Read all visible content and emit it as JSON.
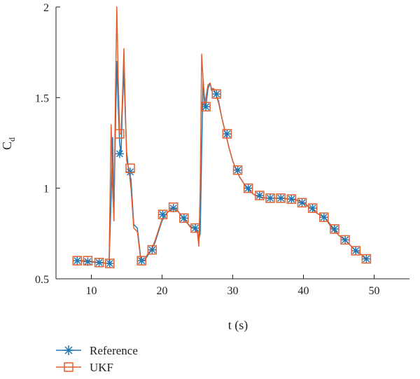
{
  "chart_data": {
    "type": "line",
    "xlabel": "t (s)",
    "ylabel": "C",
    "ylabel_subscript": "d",
    "xlim": [
      5,
      55
    ],
    "ylim": [
      0.5,
      2.0
    ],
    "xticks": [
      10,
      20,
      30,
      40,
      50
    ],
    "yticks": [
      0.5,
      1,
      1.5,
      2
    ],
    "ytick_labels": [
      "0.5",
      "1",
      "1.5",
      "2"
    ],
    "grid": false,
    "legend_placement": "bottom-left",
    "series": [
      {
        "name": "Reference",
        "color": "#1f77b4",
        "marker": "asterisk",
        "x": [
          8.0,
          9.5,
          11.0,
          12.5,
          12.8,
          13.0,
          13.2,
          13.4,
          13.6,
          13.8,
          14.0,
          14.2,
          14.4,
          14.6,
          14.8,
          15.0,
          15.3,
          15.6,
          16.0,
          16.5,
          17.0,
          17.5,
          18.0,
          18.5,
          19.0,
          19.5,
          20.0,
          20.5,
          21.0,
          21.5,
          22.0,
          22.5,
          23.0,
          23.5,
          24.0,
          24.5,
          25.0,
          25.2,
          25.4,
          25.6,
          25.8,
          26.0,
          26.2,
          26.5,
          26.8,
          27.0,
          27.3,
          27.6,
          28.0,
          28.5,
          29.0,
          29.5,
          30.0,
          30.5,
          31.0,
          31.5,
          32.0,
          32.5,
          33.0,
          33.5,
          34.0,
          35.0,
          36.0,
          37.0,
          38.0,
          39.0,
          40.0,
          41.0,
          42.0,
          43.0,
          44.0,
          45.0,
          46.0,
          47.0,
          48.0,
          48.8
        ],
        "y": [
          0.6,
          0.595,
          0.59,
          0.585,
          0.95,
          1.28,
          0.9,
          1.3,
          1.7,
          1.45,
          1.25,
          1.19,
          1.45,
          1.65,
          1.4,
          1.2,
          1.09,
          1.05,
          0.8,
          0.78,
          0.61,
          0.6,
          0.63,
          0.66,
          0.7,
          0.76,
          0.82,
          0.855,
          0.875,
          0.89,
          0.885,
          0.86,
          0.835,
          0.81,
          0.79,
          0.78,
          0.76,
          0.72,
          0.75,
          1.2,
          1.6,
          1.5,
          1.45,
          1.55,
          1.58,
          1.54,
          1.55,
          1.52,
          1.48,
          1.38,
          1.3,
          1.22,
          1.15,
          1.1,
          1.06,
          1.03,
          1.0,
          0.98,
          0.965,
          0.955,
          0.95,
          0.945,
          0.945,
          0.945,
          0.94,
          0.935,
          0.92,
          0.89,
          0.86,
          0.84,
          0.79,
          0.74,
          0.71,
          0.67,
          0.64,
          0.61
        ]
      },
      {
        "name": "UKF",
        "color": "#e0602f",
        "marker": "square",
        "x": [
          8.0,
          9.5,
          11.0,
          12.5,
          12.8,
          13.0,
          13.2,
          13.4,
          13.6,
          13.8,
          14.0,
          14.2,
          14.4,
          14.6,
          14.8,
          15.0,
          15.3,
          15.6,
          16.0,
          16.5,
          17.0,
          17.5,
          18.0,
          18.5,
          19.0,
          19.5,
          20.0,
          20.5,
          21.0,
          21.5,
          22.0,
          22.5,
          23.0,
          23.5,
          24.0,
          24.5,
          25.0,
          25.2,
          25.4,
          25.6,
          25.8,
          26.0,
          26.2,
          26.5,
          26.8,
          27.0,
          27.3,
          27.6,
          28.0,
          28.5,
          29.0,
          29.5,
          30.0,
          30.5,
          31.0,
          31.5,
          32.0,
          32.5,
          33.0,
          33.5,
          34.0,
          35.0,
          36.0,
          37.0,
          38.0,
          39.0,
          40.0,
          41.0,
          42.0,
          43.0,
          44.0,
          45.0,
          46.0,
          47.0,
          48.0,
          48.8
        ],
        "y": [
          0.6,
          0.6,
          0.59,
          0.585,
          1.35,
          1.0,
          0.82,
          1.5,
          2.0,
          1.6,
          1.3,
          1.3,
          1.5,
          1.77,
          1.45,
          1.15,
          1.11,
          1.0,
          0.78,
          0.76,
          0.6,
          0.6,
          0.64,
          0.66,
          0.71,
          0.77,
          0.83,
          0.855,
          0.875,
          0.895,
          0.885,
          0.86,
          0.835,
          0.81,
          0.785,
          0.78,
          0.755,
          0.68,
          1.0,
          1.74,
          1.6,
          1.45,
          1.5,
          1.57,
          1.58,
          1.55,
          1.55,
          1.52,
          1.47,
          1.38,
          1.3,
          1.22,
          1.15,
          1.1,
          1.06,
          1.03,
          1.0,
          0.98,
          0.965,
          0.955,
          0.95,
          0.945,
          0.945,
          0.945,
          0.94,
          0.935,
          0.92,
          0.89,
          0.86,
          0.84,
          0.78,
          0.74,
          0.71,
          0.67,
          0.64,
          0.61
        ]
      }
    ],
    "markers": {
      "Reference": {
        "x": [
          8.0,
          9.5,
          11.1,
          12.6,
          14.0,
          15.5,
          17.1,
          18.6,
          20.1,
          21.6,
          23.1,
          24.7,
          26.2,
          27.7,
          29.2,
          30.7,
          32.2,
          33.8,
          35.3,
          36.8,
          38.3,
          39.8,
          41.3,
          42.9,
          44.4,
          45.9,
          47.4,
          48.9
        ],
        "y": [
          0.6,
          0.595,
          0.59,
          0.585,
          1.19,
          1.09,
          0.6,
          0.66,
          0.855,
          0.89,
          0.835,
          0.78,
          1.45,
          1.52,
          1.3,
          1.1,
          1.0,
          0.96,
          0.945,
          0.945,
          0.94,
          0.92,
          0.89,
          0.84,
          0.775,
          0.715,
          0.655,
          0.61
        ]
      },
      "UKF": {
        "x": [
          8.0,
          9.5,
          11.1,
          12.6,
          14.0,
          15.5,
          17.1,
          18.6,
          20.1,
          21.6,
          23.1,
          24.7,
          26.2,
          27.7,
          29.2,
          30.7,
          32.2,
          33.8,
          35.3,
          36.8,
          38.3,
          39.8,
          41.3,
          42.9,
          44.4,
          45.9,
          47.4,
          48.9
        ],
        "y": [
          0.6,
          0.6,
          0.59,
          0.585,
          1.3,
          1.11,
          0.6,
          0.66,
          0.855,
          0.895,
          0.835,
          0.78,
          1.45,
          1.52,
          1.3,
          1.1,
          1.0,
          0.96,
          0.945,
          0.945,
          0.94,
          0.92,
          0.89,
          0.84,
          0.775,
          0.715,
          0.655,
          0.61
        ]
      }
    }
  },
  "legend": {
    "items": [
      {
        "label": "Reference",
        "color": "#1f77b4",
        "marker": "asterisk"
      },
      {
        "label": "UKF",
        "color": "#e0602f",
        "marker": "square"
      }
    ]
  }
}
